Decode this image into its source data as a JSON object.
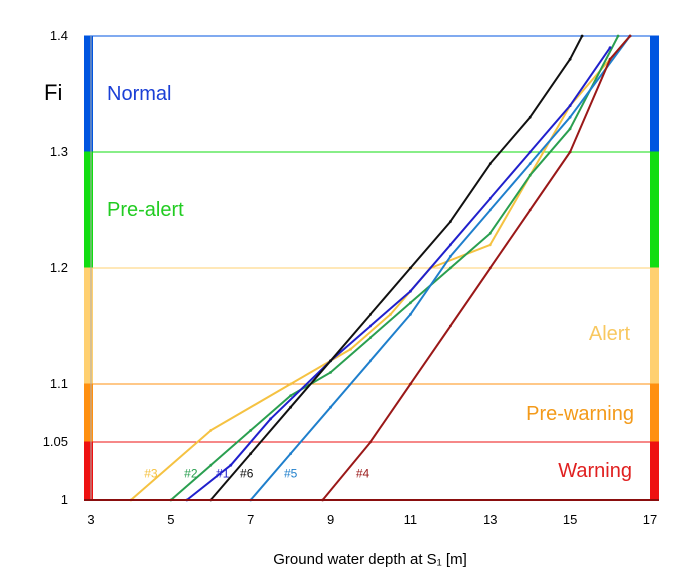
{
  "chart_data": {
    "type": "line",
    "xlabel": "Ground water depth at S₁ [m]",
    "ylabel": "Fi",
    "xlim": [
      3,
      17
    ],
    "ylim": [
      1,
      1.4
    ],
    "x_ticks": [
      "3",
      "5",
      "7",
      "9",
      "11",
      "13",
      "15",
      "17"
    ],
    "y_ticks": [
      "1",
      "1.05",
      "1.1",
      "1.2",
      "1.3",
      "1.4"
    ],
    "zones": [
      {
        "name": "Normal",
        "from": 1.3,
        "to": 1.4,
        "color": "#0055e0",
        "text_color": "#1a3fd6"
      },
      {
        "name": "Pre-alert",
        "from": 1.2,
        "to": 1.3,
        "color": "#11dd11",
        "text_color": "#22cc22"
      },
      {
        "name": "Alert",
        "from": 1.1,
        "to": 1.2,
        "color": "#ffd070",
        "text_color": "#f8c860"
      },
      {
        "name": "Pre-warning",
        "from": 1.05,
        "to": 1.1,
        "color": "#ff9010",
        "text_color": "#f39a1a"
      },
      {
        "name": "Warning",
        "from": 1.0,
        "to": 1.05,
        "color": "#ee1111",
        "text_color": "#e02020"
      }
    ],
    "series": [
      {
        "name": "#3",
        "color": "#f5c242",
        "x": [
          4.0,
          6.0,
          8.0,
          9.5,
          10.5,
          11.5,
          13.0,
          14.0,
          15.0,
          16.5
        ],
        "y": [
          1.0,
          1.06,
          1.1,
          1.13,
          1.16,
          1.2,
          1.22,
          1.28,
          1.34,
          1.4
        ]
      },
      {
        "name": "#2",
        "color": "#2a9f50",
        "x": [
          5.0,
          6.0,
          7.0,
          8.0,
          9.0,
          10.0,
          11.0,
          12.0,
          13.0,
          14.0,
          15.0,
          16.2
        ],
        "y": [
          1.0,
          1.03,
          1.06,
          1.09,
          1.11,
          1.14,
          1.17,
          1.2,
          1.23,
          1.28,
          1.32,
          1.4
        ]
      },
      {
        "name": "#1",
        "color": "#2020cc",
        "x": [
          5.4,
          6.5,
          7.5,
          9.0,
          10.0,
          11.0,
          12.0,
          13.0,
          14.0,
          15.0,
          16.0
        ],
        "y": [
          1.0,
          1.03,
          1.07,
          1.12,
          1.15,
          1.18,
          1.22,
          1.26,
          1.3,
          1.34,
          1.39
        ]
      },
      {
        "name": "#6",
        "color": "#111111",
        "x": [
          6.0,
          7.0,
          8.0,
          9.0,
          10.0,
          11.0,
          12.0,
          13.0,
          14.0,
          15.0,
          15.3
        ],
        "y": [
          1.0,
          1.04,
          1.08,
          1.12,
          1.16,
          1.2,
          1.24,
          1.29,
          1.33,
          1.38,
          1.4
        ]
      },
      {
        "name": "#5",
        "color": "#1f7fcc",
        "x": [
          7.0,
          8.0,
          9.0,
          10.0,
          11.0,
          12.0,
          13.0,
          14.0,
          15.0,
          16.5
        ],
        "y": [
          1.0,
          1.04,
          1.08,
          1.12,
          1.16,
          1.21,
          1.25,
          1.29,
          1.33,
          1.4
        ]
      },
      {
        "name": "#4",
        "color": "#9a1818",
        "x": [
          8.8,
          10.0,
          11.0,
          12.0,
          13.0,
          14.0,
          15.0,
          16.0,
          16.5
        ],
        "y": [
          1.0,
          1.05,
          1.1,
          1.15,
          1.2,
          1.25,
          1.3,
          1.38,
          1.4
        ]
      }
    ],
    "series_label_y": 1.023,
    "series_label_x": {
      "#3": 4.5,
      "#2": 5.5,
      "#1": 6.3,
      "#6": 6.9,
      "#5": 8.0,
      "#4": 9.8
    },
    "grid": false
  }
}
